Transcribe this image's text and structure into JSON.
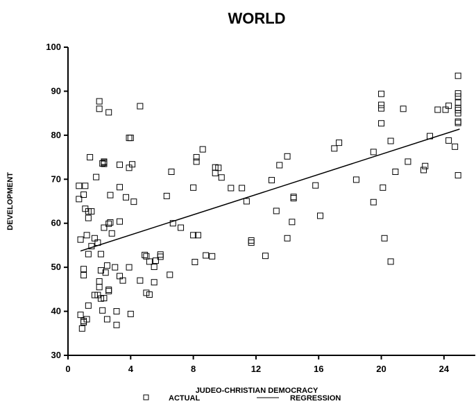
{
  "chart_data": {
    "type": "scatter",
    "title": "WORLD",
    "xlabel": "JUDEO-CHRISTIAN DEMOCRACY",
    "ylabel": "DEVELOPMENT",
    "xlim": [
      0,
      26
    ],
    "ylim": [
      30,
      100
    ],
    "xticks": [
      0,
      4,
      8,
      12,
      16,
      20,
      24
    ],
    "yticks": [
      30,
      40,
      50,
      60,
      70,
      80,
      90,
      100
    ],
    "grid": false,
    "legend": {
      "position": "bottom-center",
      "items": [
        "ACTUAL",
        "REGRESSION"
      ]
    },
    "series": [
      {
        "name": "ACTUAL",
        "marker": "open-square",
        "points": [
          [
            0.7,
            68.5
          ],
          [
            0.7,
            65.5
          ],
          [
            0.8,
            39.2
          ],
          [
            0.8,
            56.3
          ],
          [
            0.9,
            36.1
          ],
          [
            1.0,
            48.2
          ],
          [
            1.0,
            49.6
          ],
          [
            1.0,
            37.5
          ],
          [
            1.0,
            37.8
          ],
          [
            1.0,
            66.5
          ],
          [
            1.1,
            68.5
          ],
          [
            1.1,
            63.3
          ],
          [
            1.2,
            57.3
          ],
          [
            1.2,
            38.2
          ],
          [
            1.3,
            41.3
          ],
          [
            1.3,
            62.7
          ],
          [
            1.3,
            61.2
          ],
          [
            1.3,
            53.0
          ],
          [
            1.4,
            75.0
          ],
          [
            1.5,
            62.7
          ],
          [
            1.5,
            54.8
          ],
          [
            1.7,
            56.6
          ],
          [
            1.7,
            43.7
          ],
          [
            1.8,
            70.5
          ],
          [
            1.9,
            55.6
          ],
          [
            1.9,
            43.7
          ],
          [
            2.0,
            87.7
          ],
          [
            2.0,
            86.0
          ],
          [
            2.0,
            46.8
          ],
          [
            2.0,
            45.5
          ],
          [
            2.1,
            49.3
          ],
          [
            2.1,
            53.0
          ],
          [
            2.1,
            42.9
          ],
          [
            2.2,
            73.6
          ],
          [
            2.2,
            40.2
          ],
          [
            2.3,
            74.0
          ],
          [
            2.3,
            73.8
          ],
          [
            2.3,
            73.5
          ],
          [
            2.3,
            59.0
          ],
          [
            2.3,
            43.0
          ],
          [
            2.4,
            48.8
          ],
          [
            2.5,
            50.4
          ],
          [
            2.5,
            38.2
          ],
          [
            2.6,
            85.2
          ],
          [
            2.6,
            59.9
          ],
          [
            2.6,
            44.6
          ],
          [
            2.6,
            44.9
          ],
          [
            2.7,
            66.4
          ],
          [
            2.7,
            60.2
          ],
          [
            2.8,
            57.7
          ],
          [
            3.0,
            50.0
          ],
          [
            3.1,
            40.0
          ],
          [
            3.1,
            36.9
          ],
          [
            3.3,
            60.4
          ],
          [
            3.3,
            73.3
          ],
          [
            3.3,
            68.2
          ],
          [
            3.3,
            48.0
          ],
          [
            3.5,
            47.0
          ],
          [
            3.7,
            65.9
          ],
          [
            3.9,
            79.4
          ],
          [
            3.9,
            72.6
          ],
          [
            3.9,
            50.0
          ],
          [
            4.0,
            79.4
          ],
          [
            4.0,
            39.4
          ],
          [
            4.1,
            73.4
          ],
          [
            4.2,
            64.9
          ],
          [
            4.6,
            86.6
          ],
          [
            4.6,
            47.0
          ],
          [
            4.9,
            52.8
          ],
          [
            5.0,
            52.5
          ],
          [
            5.0,
            44.2
          ],
          [
            5.2,
            51.3
          ],
          [
            5.2,
            43.8
          ],
          [
            5.5,
            50.1
          ],
          [
            5.5,
            46.6
          ],
          [
            5.6,
            51.5
          ],
          [
            5.9,
            52.9
          ],
          [
            5.9,
            52.4
          ],
          [
            6.3,
            66.2
          ],
          [
            6.5,
            48.3
          ],
          [
            6.6,
            71.7
          ],
          [
            6.7,
            60.0
          ],
          [
            7.2,
            59.0
          ],
          [
            8.0,
            68.1
          ],
          [
            8.0,
            57.3
          ],
          [
            8.1,
            51.2
          ],
          [
            8.2,
            75.0
          ],
          [
            8.2,
            74.0
          ],
          [
            8.3,
            57.3
          ],
          [
            8.6,
            76.8
          ],
          [
            8.8,
            52.7
          ],
          [
            9.2,
            52.5
          ],
          [
            9.4,
            72.7
          ],
          [
            9.4,
            71.4
          ],
          [
            9.6,
            72.6
          ],
          [
            9.8,
            70.4
          ],
          [
            10.4,
            68.0
          ],
          [
            11.1,
            68.0
          ],
          [
            11.4,
            65.0
          ],
          [
            11.7,
            56.1
          ],
          [
            11.7,
            55.6
          ],
          [
            12.6,
            52.6
          ],
          [
            13.0,
            69.8
          ],
          [
            13.3,
            62.8
          ],
          [
            13.5,
            73.2
          ],
          [
            14.0,
            75.2
          ],
          [
            14.0,
            56.6
          ],
          [
            14.3,
            60.3
          ],
          [
            14.4,
            66.0
          ],
          [
            14.4,
            65.7
          ],
          [
            15.8,
            68.6
          ],
          [
            16.1,
            61.7
          ],
          [
            17.0,
            77.0
          ],
          [
            17.3,
            78.3
          ],
          [
            18.4,
            69.9
          ],
          [
            19.5,
            76.2
          ],
          [
            19.5,
            64.8
          ],
          [
            20.0,
            89.4
          ],
          [
            20.0,
            86.9
          ],
          [
            20.0,
            86.1
          ],
          [
            20.0,
            82.7
          ],
          [
            20.1,
            68.1
          ],
          [
            20.2,
            56.6
          ],
          [
            20.6,
            78.7
          ],
          [
            20.6,
            51.3
          ],
          [
            20.9,
            71.7
          ],
          [
            21.4,
            86.0
          ],
          [
            21.7,
            74.0
          ],
          [
            22.7,
            72.1
          ],
          [
            22.8,
            73.0
          ],
          [
            23.1,
            79.8
          ],
          [
            23.6,
            85.8
          ],
          [
            24.1,
            85.8
          ],
          [
            24.3,
            86.7
          ],
          [
            24.3,
            78.8
          ],
          [
            24.7,
            77.4
          ],
          [
            24.9,
            93.5
          ],
          [
            24.9,
            89.5
          ],
          [
            24.9,
            88.8
          ],
          [
            24.9,
            87.4
          ],
          [
            24.9,
            86.2
          ],
          [
            24.9,
            85.7
          ],
          [
            24.9,
            85.0
          ],
          [
            24.9,
            83.1
          ],
          [
            24.9,
            82.8
          ],
          [
            24.9,
            70.9
          ]
        ]
      },
      {
        "name": "REGRESSION",
        "style": "solid-line",
        "points": [
          [
            0.8,
            53.7
          ],
          [
            25.0,
            81.4
          ]
        ]
      }
    ]
  }
}
